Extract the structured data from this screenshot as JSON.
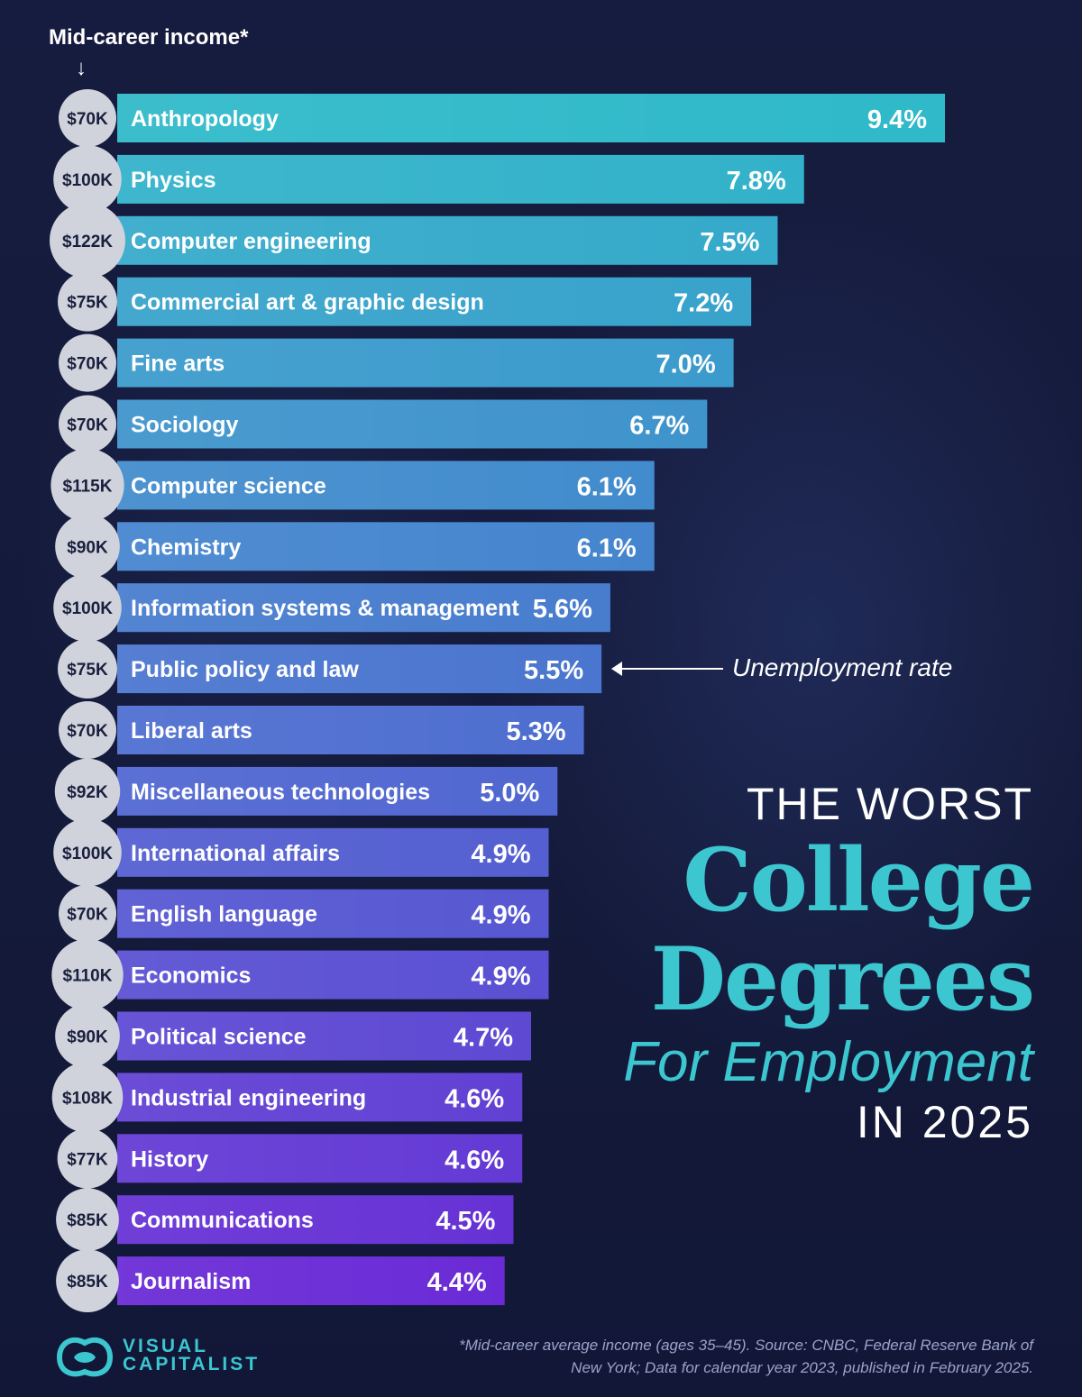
{
  "header": {
    "income_label": "Mid-career income*",
    "arrow": "↓"
  },
  "annotation": {
    "label": "Unemployment rate"
  },
  "title": {
    "line1": "THE WORST",
    "line2": "College",
    "line3": "Degrees",
    "line4": "For Employment",
    "line5": "IN 2025"
  },
  "logo": {
    "word1": "VISUAL",
    "word2": "CAPITALIST",
    "icon": "visual-capitalist-logo-icon"
  },
  "footnote": {
    "line1": "*Mid-career average income (ages 35–45). Source: CNBC, Federal Reserve Bank of",
    "line2": "New York; Data for calendar year 2023, published in February 2025."
  },
  "colors": {
    "background": "#141a3a",
    "bar_top": "#2fb9c9",
    "bar_bottom": "#6a2bd6",
    "accent": "#3cc6cf",
    "income_circle": "#d0d3dc"
  },
  "chart_data": {
    "type": "bar",
    "orientation": "horizontal",
    "categories": [
      "Anthropology",
      "Physics",
      "Computer engineering",
      "Commercial art & graphic design",
      "Fine arts",
      "Sociology",
      "Computer science",
      "Chemistry",
      "Information systems & management",
      "Public policy and law",
      "Liberal arts",
      "Miscellaneous technologies",
      "International affairs",
      "English language",
      "Economics",
      "Political science",
      "Industrial engineering",
      "History",
      "Communications",
      "Journalism"
    ],
    "values": [
      9.4,
      7.8,
      7.5,
      7.2,
      7.0,
      6.7,
      6.1,
      6.1,
      5.6,
      5.5,
      5.3,
      5.0,
      4.9,
      4.9,
      4.9,
      4.7,
      4.6,
      4.6,
      4.5,
      4.4
    ],
    "value_labels": [
      "9.4%",
      "7.8%",
      "7.5%",
      "7.2%",
      "7.0%",
      "6.7%",
      "6.1%",
      "6.1%",
      "5.6%",
      "5.5%",
      "5.3%",
      "5.0%",
      "4.9%",
      "4.9%",
      "4.9%",
      "4.7%",
      "4.6%",
      "4.6%",
      "4.5%",
      "4.4%"
    ],
    "income": [
      70,
      100,
      122,
      75,
      70,
      70,
      115,
      90,
      100,
      75,
      70,
      92,
      100,
      70,
      110,
      90,
      108,
      77,
      85,
      85
    ],
    "income_labels": [
      "$70K",
      "$100K",
      "$122K",
      "$75K",
      "$70K",
      "$70K",
      "$115K",
      "$90K",
      "$100K",
      "$75K",
      "$70K",
      "$92K",
      "$100K",
      "$70K",
      "$110K",
      "$90K",
      "$108K",
      "$77K",
      "$85K",
      "$85K"
    ],
    "title": "THE WORST College Degrees For Employment IN 2025",
    "xlabel": "Unemployment rate",
    "ylabel": "",
    "xlim": [
      0,
      9.4
    ],
    "grid": false,
    "legend": "none"
  }
}
